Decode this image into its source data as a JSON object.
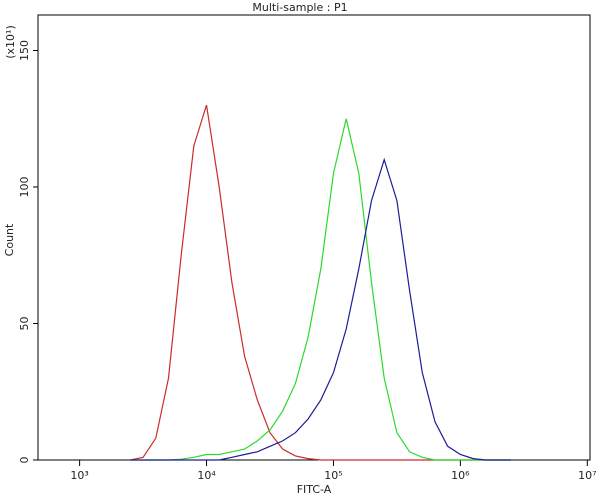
{
  "chart_data": {
    "type": "line",
    "title": "Multi-sample : P1",
    "x_label": "FITC-A",
    "y_label": "Count",
    "y_multiplier": "(x10¹)",
    "x_scale": "log",
    "xlim": [
      470,
      10500000
    ],
    "ylim": [
      0,
      163
    ],
    "xticks": [
      {
        "value": 1000,
        "label": "10³"
      },
      {
        "value": 10000,
        "label": "10⁴"
      },
      {
        "value": 100000,
        "label": "10⁵"
      },
      {
        "value": 1000000,
        "label": "10⁶"
      },
      {
        "value": 10000000,
        "label": "10⁷"
      }
    ],
    "yticks": [
      0,
      50,
      100,
      150
    ],
    "x": [
      2512,
      3162,
      3981,
      5012,
      6310,
      7943,
      10000,
      12589,
      15849,
      19953,
      25119,
      31623,
      39811,
      50119,
      63096,
      79433,
      100000,
      125893,
      158489,
      199526,
      251189,
      316228,
      398107,
      501187,
      630957,
      794328,
      1000000,
      1258925,
      1584893,
      1995262,
      2511886
    ],
    "series": [
      {
        "color": "#cc2b2b",
        "values": [
          0,
          1,
          8,
          30,
          75,
          115,
          130,
          100,
          65,
          38,
          22,
          10,
          4,
          1.5,
          0.5,
          0,
          0,
          0,
          0,
          0,
          0,
          0,
          0,
          0,
          0,
          0,
          0,
          0,
          0,
          0,
          0
        ]
      },
      {
        "color": "#2ed82e",
        "values": [
          0,
          0,
          0,
          0,
          0.3,
          1,
          2,
          2,
          3,
          4,
          7,
          11,
          18,
          28,
          45,
          70,
          105,
          125,
          105,
          65,
          30,
          10,
          3,
          1,
          0,
          0,
          0,
          0,
          0,
          0,
          0
        ]
      },
      {
        "color": "#1c1c96",
        "values": [
          0,
          0,
          0,
          0,
          0,
          0,
          0,
          0,
          1,
          2,
          3,
          5,
          7,
          10,
          15,
          22,
          32,
          48,
          70,
          95,
          110,
          95,
          62,
          32,
          14,
          5,
          2,
          0.5,
          0,
          0,
          0
        ]
      }
    ]
  }
}
